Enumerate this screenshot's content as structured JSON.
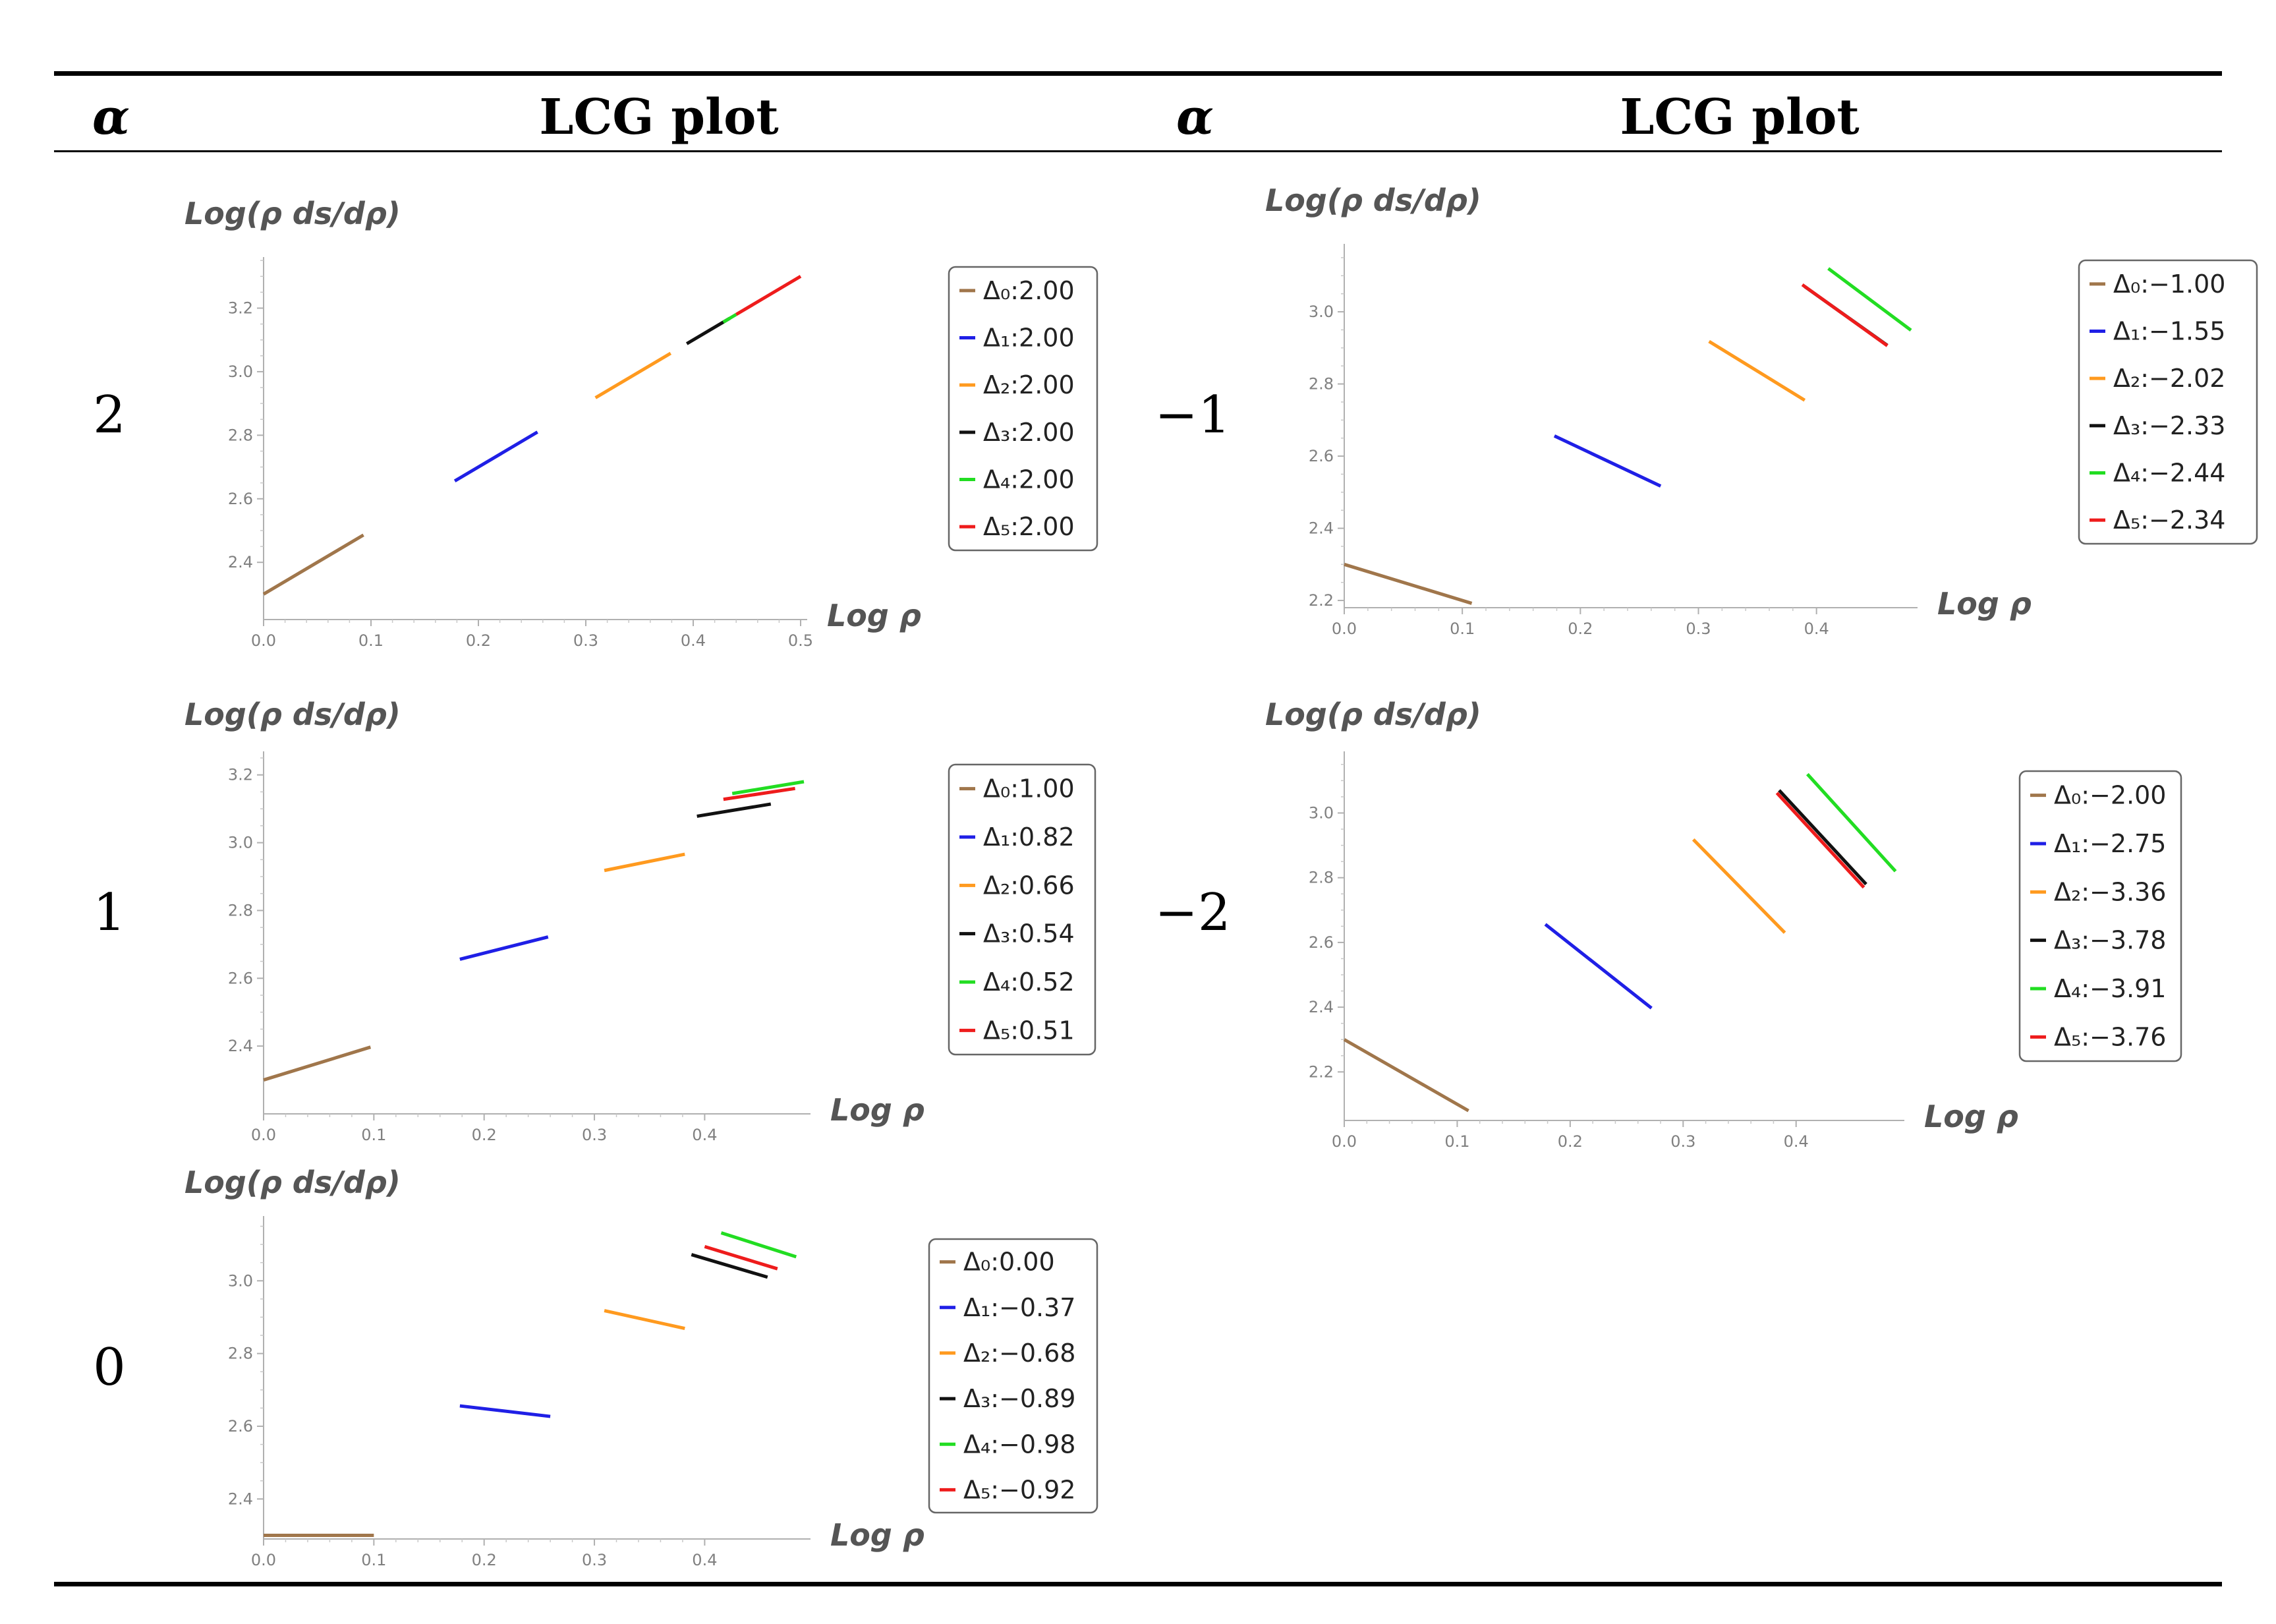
{
  "header": {
    "alpha_left": "α",
    "title_left": "LCG plot",
    "alpha_right": "α",
    "title_right": "LCG plot"
  },
  "chart_data": [
    {
      "type": "line",
      "alpha": "2",
      "ylabel": "Log(ρ ds/dρ)",
      "xlabel": "Log ρ",
      "xlim": [
        0,
        0.5
      ],
      "ylim": [
        2.22,
        3.34
      ],
      "xticks": [
        "0.0",
        "0.1",
        "0.2",
        "0.3",
        "0.4",
        "0.5"
      ],
      "yticks": [
        "2.4",
        "2.6",
        "2.8",
        "3.0",
        "3.2"
      ],
      "series": [
        {
          "name": "Δ₀:2.00",
          "color": "#a0764b",
          "x": [
            0.0,
            0.093
          ],
          "y": [
            2.3,
            2.486
          ]
        },
        {
          "name": "Δ₁:2.00",
          "color": "#1f1fe6",
          "x": [
            0.178,
            0.255
          ],
          "y": [
            2.656,
            2.81
          ]
        },
        {
          "name": "Δ₂:2.00",
          "color": "#ff9a1f",
          "x": [
            0.309,
            0.379
          ],
          "y": [
            2.918,
            3.058
          ]
        },
        {
          "name": "Δ₃:2.00",
          "color": "#111111",
          "x": [
            0.394,
            0.434
          ],
          "y": [
            3.088,
            3.168
          ]
        },
        {
          "name": "Δ₄:2.00",
          "color": "#22dd22",
          "x": [
            0.428,
            0.44
          ],
          "y": [
            3.156,
            3.18
          ]
        },
        {
          "name": "Δ₅:2.00",
          "color": "#ee1c1c",
          "x": [
            0.44,
            0.5
          ],
          "y": [
            3.18,
            3.3
          ]
        }
      ]
    },
    {
      "type": "line",
      "alpha": "1",
      "ylabel": "Log(ρ ds/dρ)",
      "xlabel": "Log ρ",
      "xlim": [
        0,
        0.49
      ],
      "ylim": [
        2.2,
        3.25
      ],
      "xticks": [
        "0.0",
        "0.1",
        "0.2",
        "0.3",
        "0.4"
      ],
      "yticks": [
        "2.4",
        "2.6",
        "2.8",
        "3.0",
        "3.2"
      ],
      "series": [
        {
          "name": "Δ₀:1.00",
          "color": "#a0764b",
          "x": [
            0.0,
            0.097
          ],
          "y": [
            2.3,
            2.397
          ]
        },
        {
          "name": "Δ₁:0.82",
          "color": "#1f1fe6",
          "x": [
            0.178,
            0.258
          ],
          "y": [
            2.656,
            2.722
          ]
        },
        {
          "name": "Δ₂:0.66",
          "color": "#ff9a1f",
          "x": [
            0.309,
            0.382
          ],
          "y": [
            2.918,
            2.966
          ]
        },
        {
          "name": "Δ₃:0.54",
          "color": "#111111",
          "x": [
            0.393,
            0.46
          ],
          "y": [
            3.078,
            3.114
          ]
        },
        {
          "name": "Δ₄:0.52",
          "color": "#22dd22",
          "x": [
            0.425,
            0.49
          ],
          "y": [
            3.145,
            3.18
          ]
        },
        {
          "name": "Δ₅:0.51",
          "color": "#ee1c1c",
          "x": [
            0.417,
            0.482
          ],
          "y": [
            3.128,
            3.16
          ]
        }
      ]
    },
    {
      "type": "line",
      "alpha": "0",
      "ylabel": "Log(ρ ds/dρ)",
      "xlabel": "Log ρ",
      "xlim": [
        0,
        0.49
      ],
      "ylim": [
        2.29,
        3.16
      ],
      "xticks": [
        "0.0",
        "0.1",
        "0.2",
        "0.3",
        "0.4"
      ],
      "yticks": [
        "2.4",
        "2.6",
        "2.8",
        "3.0"
      ],
      "series": [
        {
          "name": "Δ₀:0.00",
          "color": "#a0764b",
          "x": [
            0.0,
            0.1
          ],
          "y": [
            2.3,
            2.3
          ]
        },
        {
          "name": "Δ₁:−0.37",
          "color": "#1f1fe6",
          "x": [
            0.178,
            0.26
          ],
          "y": [
            2.656,
            2.627
          ]
        },
        {
          "name": "Δ₂:−0.68",
          "color": "#ff9a1f",
          "x": [
            0.309,
            0.382
          ],
          "y": [
            2.918,
            2.869
          ]
        },
        {
          "name": "Δ₃:−0.89",
          "color": "#111111",
          "x": [
            0.388,
            0.457
          ],
          "y": [
            3.072,
            3.01
          ]
        },
        {
          "name": "Δ₄:−0.98",
          "color": "#22dd22",
          "x": [
            0.415,
            0.483
          ],
          "y": [
            3.132,
            3.066
          ]
        },
        {
          "name": "Δ₅:−0.92",
          "color": "#ee1c1c",
          "x": [
            0.4,
            0.466
          ],
          "y": [
            3.094,
            3.033
          ]
        }
      ]
    },
    {
      "type": "line",
      "alpha": "−1",
      "ylabel": "Log(ρ ds/dρ)",
      "xlabel": "Log ρ",
      "xlim": [
        0,
        0.48
      ],
      "ylim": [
        2.18,
        3.17
      ],
      "xticks": [
        "0.0",
        "0.1",
        "0.2",
        "0.3",
        "0.4"
      ],
      "yticks": [
        "2.2",
        "2.4",
        "2.6",
        "2.8",
        "3.0"
      ],
      "series": [
        {
          "name": "Δ₀:−1.00",
          "color": "#a0764b",
          "x": [
            0.0,
            0.108
          ],
          "y": [
            2.3,
            2.192
          ]
        },
        {
          "name": "Δ₁:−1.55",
          "color": "#1f1fe6",
          "x": [
            0.178,
            0.268
          ],
          "y": [
            2.656,
            2.517
          ]
        },
        {
          "name": "Δ₂:−2.02",
          "color": "#ff9a1f",
          "x": [
            0.309,
            0.39
          ],
          "y": [
            2.918,
            2.755
          ]
        },
        {
          "name": "Δ₃:−2.33",
          "color": "#111111",
          "x": [
            0.39,
            0.46
          ],
          "y": [
            3.07,
            2.907
          ]
        },
        {
          "name": "Δ₄:−2.44",
          "color": "#22dd22",
          "x": [
            0.41,
            0.48
          ],
          "y": [
            3.12,
            2.949
          ]
        },
        {
          "name": "Δ₅:−2.34",
          "color": "#ee1c1c",
          "x": [
            0.388,
            0.46
          ],
          "y": [
            3.075,
            2.906
          ]
        }
      ]
    },
    {
      "type": "line",
      "alpha": "−2",
      "ylabel": "Log(ρ ds/dρ)",
      "xlabel": "Log ρ",
      "xlim": [
        0,
        0.49
      ],
      "ylim": [
        2.05,
        3.17
      ],
      "xticks": [
        "0.0",
        "0.1",
        "0.2",
        "0.3",
        "0.4"
      ],
      "yticks": [
        "2.2",
        "2.4",
        "2.6",
        "2.8",
        "3.0"
      ],
      "series": [
        {
          "name": "Δ₀:−2.00",
          "color": "#a0764b",
          "x": [
            0.0,
            0.11
          ],
          "y": [
            2.3,
            2.08
          ]
        },
        {
          "name": "Δ₁:−2.75",
          "color": "#1f1fe6",
          "x": [
            0.178,
            0.272
          ],
          "y": [
            2.656,
            2.397
          ]
        },
        {
          "name": "Δ₂:−3.36",
          "color": "#ff9a1f",
          "x": [
            0.309,
            0.39
          ],
          "y": [
            2.918,
            2.63
          ]
        },
        {
          "name": "Δ₃:−3.78",
          "color": "#111111",
          "x": [
            0.385,
            0.462
          ],
          "y": [
            3.07,
            2.78
          ]
        },
        {
          "name": "Δ₄:−3.91",
          "color": "#22dd22",
          "x": [
            0.41,
            0.488
          ],
          "y": [
            3.12,
            2.82
          ]
        },
        {
          "name": "Δ₅:−3.76",
          "color": "#ee1c1c",
          "x": [
            0.383,
            0.46
          ],
          "y": [
            3.062,
            2.77
          ]
        }
      ]
    }
  ]
}
